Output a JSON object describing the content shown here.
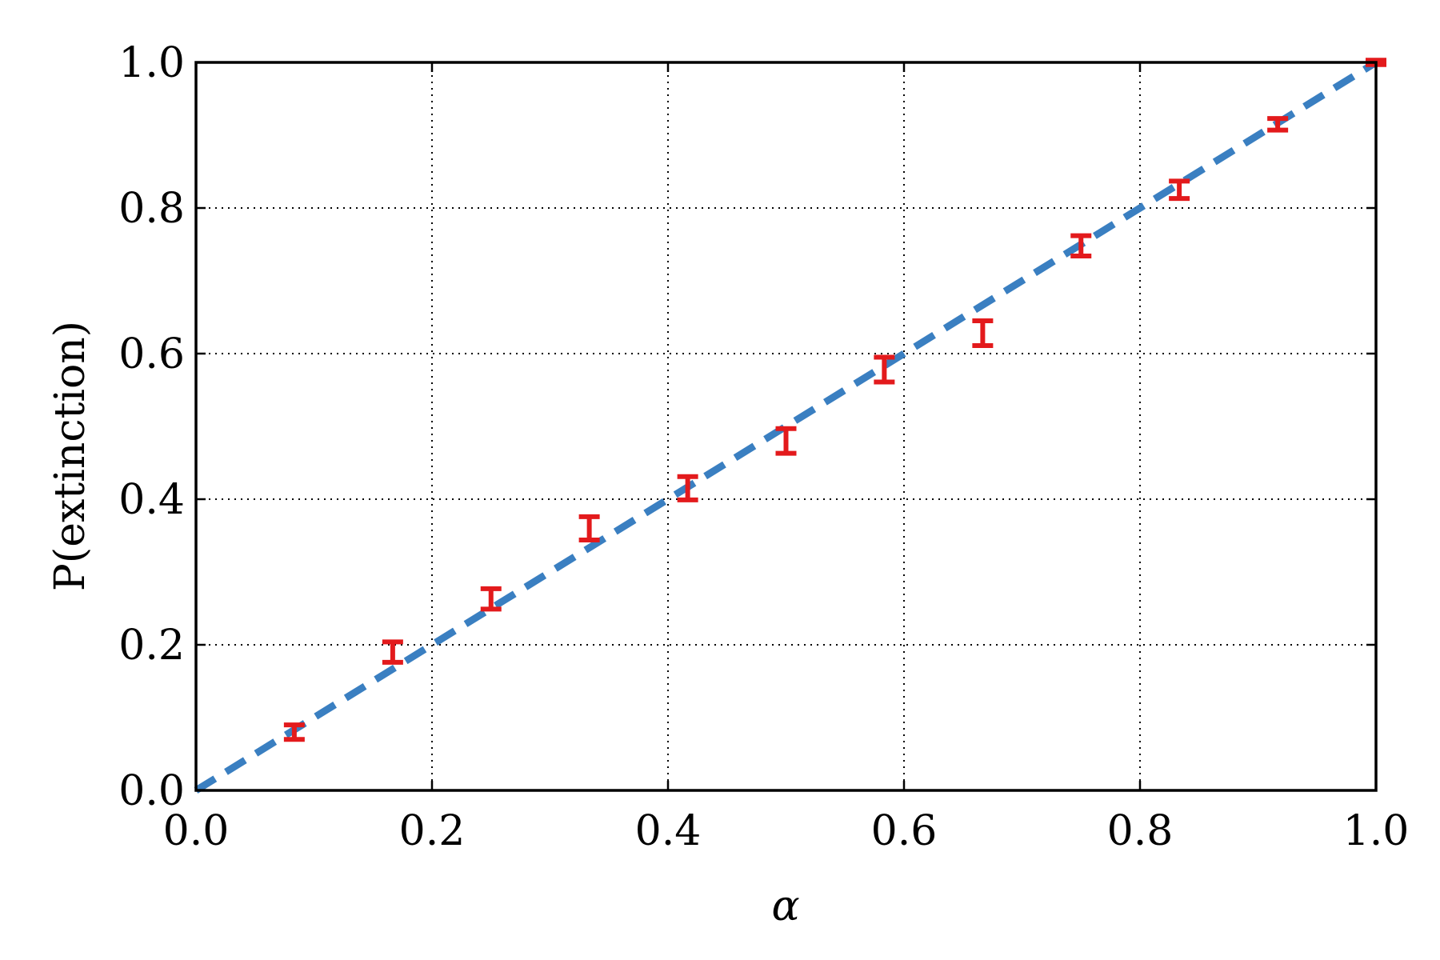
{
  "chart_data": {
    "type": "scatter",
    "title": "",
    "xlabel": "α",
    "ylabel": "P(extinction)",
    "xlim": [
      0.0,
      1.0
    ],
    "ylim": [
      0.0,
      1.0
    ],
    "xticks": [
      "0.0",
      "0.2",
      "0.4",
      "0.6",
      "0.8",
      "1.0"
    ],
    "yticks": [
      "0.0",
      "0.2",
      "0.4",
      "0.6",
      "0.8",
      "1.0"
    ],
    "grid": true,
    "colors": {
      "points": "#e31a1c",
      "line": "#3a7fc1"
    },
    "series": [
      {
        "style": "errorbar",
        "x": [
          0.0833,
          0.1667,
          0.25,
          0.3333,
          0.4167,
          0.5,
          0.5833,
          0.6667,
          0.75,
          0.8333,
          0.9167,
          1.0
        ],
        "y": [
          0.08,
          0.19,
          0.263,
          0.36,
          0.415,
          0.48,
          0.578,
          0.628,
          0.748,
          0.825,
          0.915,
          1.0
        ],
        "err": [
          0.01,
          0.014,
          0.014,
          0.016,
          0.016,
          0.017,
          0.017,
          0.017,
          0.014,
          0.012,
          0.008,
          0.003
        ]
      },
      {
        "style": "dashed-line",
        "x": [
          0.0,
          1.0
        ],
        "y": [
          0.0,
          1.0
        ]
      }
    ]
  }
}
